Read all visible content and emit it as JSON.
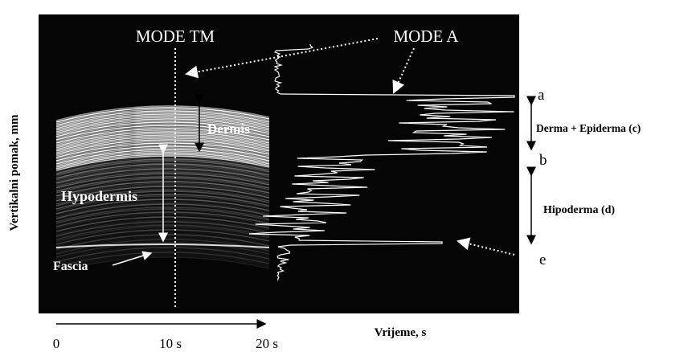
{
  "image": {
    "mode_tm": "MODE TM",
    "mode_a": "MODE A",
    "dermis": "Dermis",
    "hypodermis": "Hypodermis",
    "fascia": "Fascia"
  },
  "markers": {
    "a": "a",
    "b": "b",
    "e": "e"
  },
  "layers": [
    "Derma + Epiderma (c)",
    "Hipoderma (d)"
  ],
  "y_axis_label": "Vertikalni pomak, mm",
  "x_axis_label": "Vrijeme, s",
  "time_labels": [
    "0",
    "10 s",
    "20 s"
  ]
}
